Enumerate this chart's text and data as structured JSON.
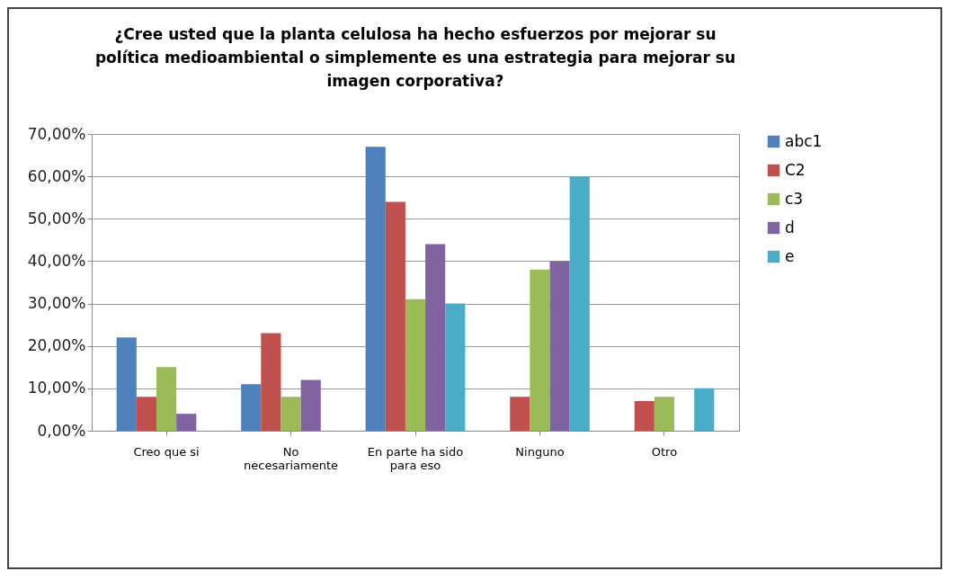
{
  "chart_data": {
    "type": "bar",
    "title": "¿Cree usted que la planta celulosa ha hecho esfuerzos por mejorar su política medioambiental o simplemente es una estrategia para mejorar su imagen corporativa?",
    "categories": [
      "Creo que si",
      "No necesariamente",
      "En parte ha sido para eso",
      "Ninguno",
      "Otro"
    ],
    "series": [
      {
        "name": "abc1",
        "color": "#4f81bd",
        "values": [
          22,
          11,
          67,
          0,
          0
        ]
      },
      {
        "name": "C2",
        "color": "#c0504d",
        "values": [
          8,
          23,
          54,
          8,
          7
        ]
      },
      {
        "name": "c3",
        "color": "#9bbb59",
        "values": [
          15,
          8,
          31,
          38,
          8
        ]
      },
      {
        "name": "d",
        "color": "#8064a2",
        "values": [
          4,
          12,
          44,
          40,
          0
        ]
      },
      {
        "name": "e",
        "color": "#4bacc6",
        "values": [
          0,
          0,
          30,
          60,
          10
        ]
      }
    ],
    "ylim": [
      0,
      70
    ],
    "yticks": [
      {
        "value": 0,
        "label": "0,00%"
      },
      {
        "value": 10,
        "label": "10,00%"
      },
      {
        "value": 20,
        "label": "20,00%"
      },
      {
        "value": 30,
        "label": "30,00%"
      },
      {
        "value": 40,
        "label": "40,00%"
      },
      {
        "value": 50,
        "label": "50,00%"
      },
      {
        "value": 60,
        "label": "60,00%"
      },
      {
        "value": 70,
        "label": "70,00%"
      }
    ],
    "grid": "y",
    "legend": "right"
  }
}
